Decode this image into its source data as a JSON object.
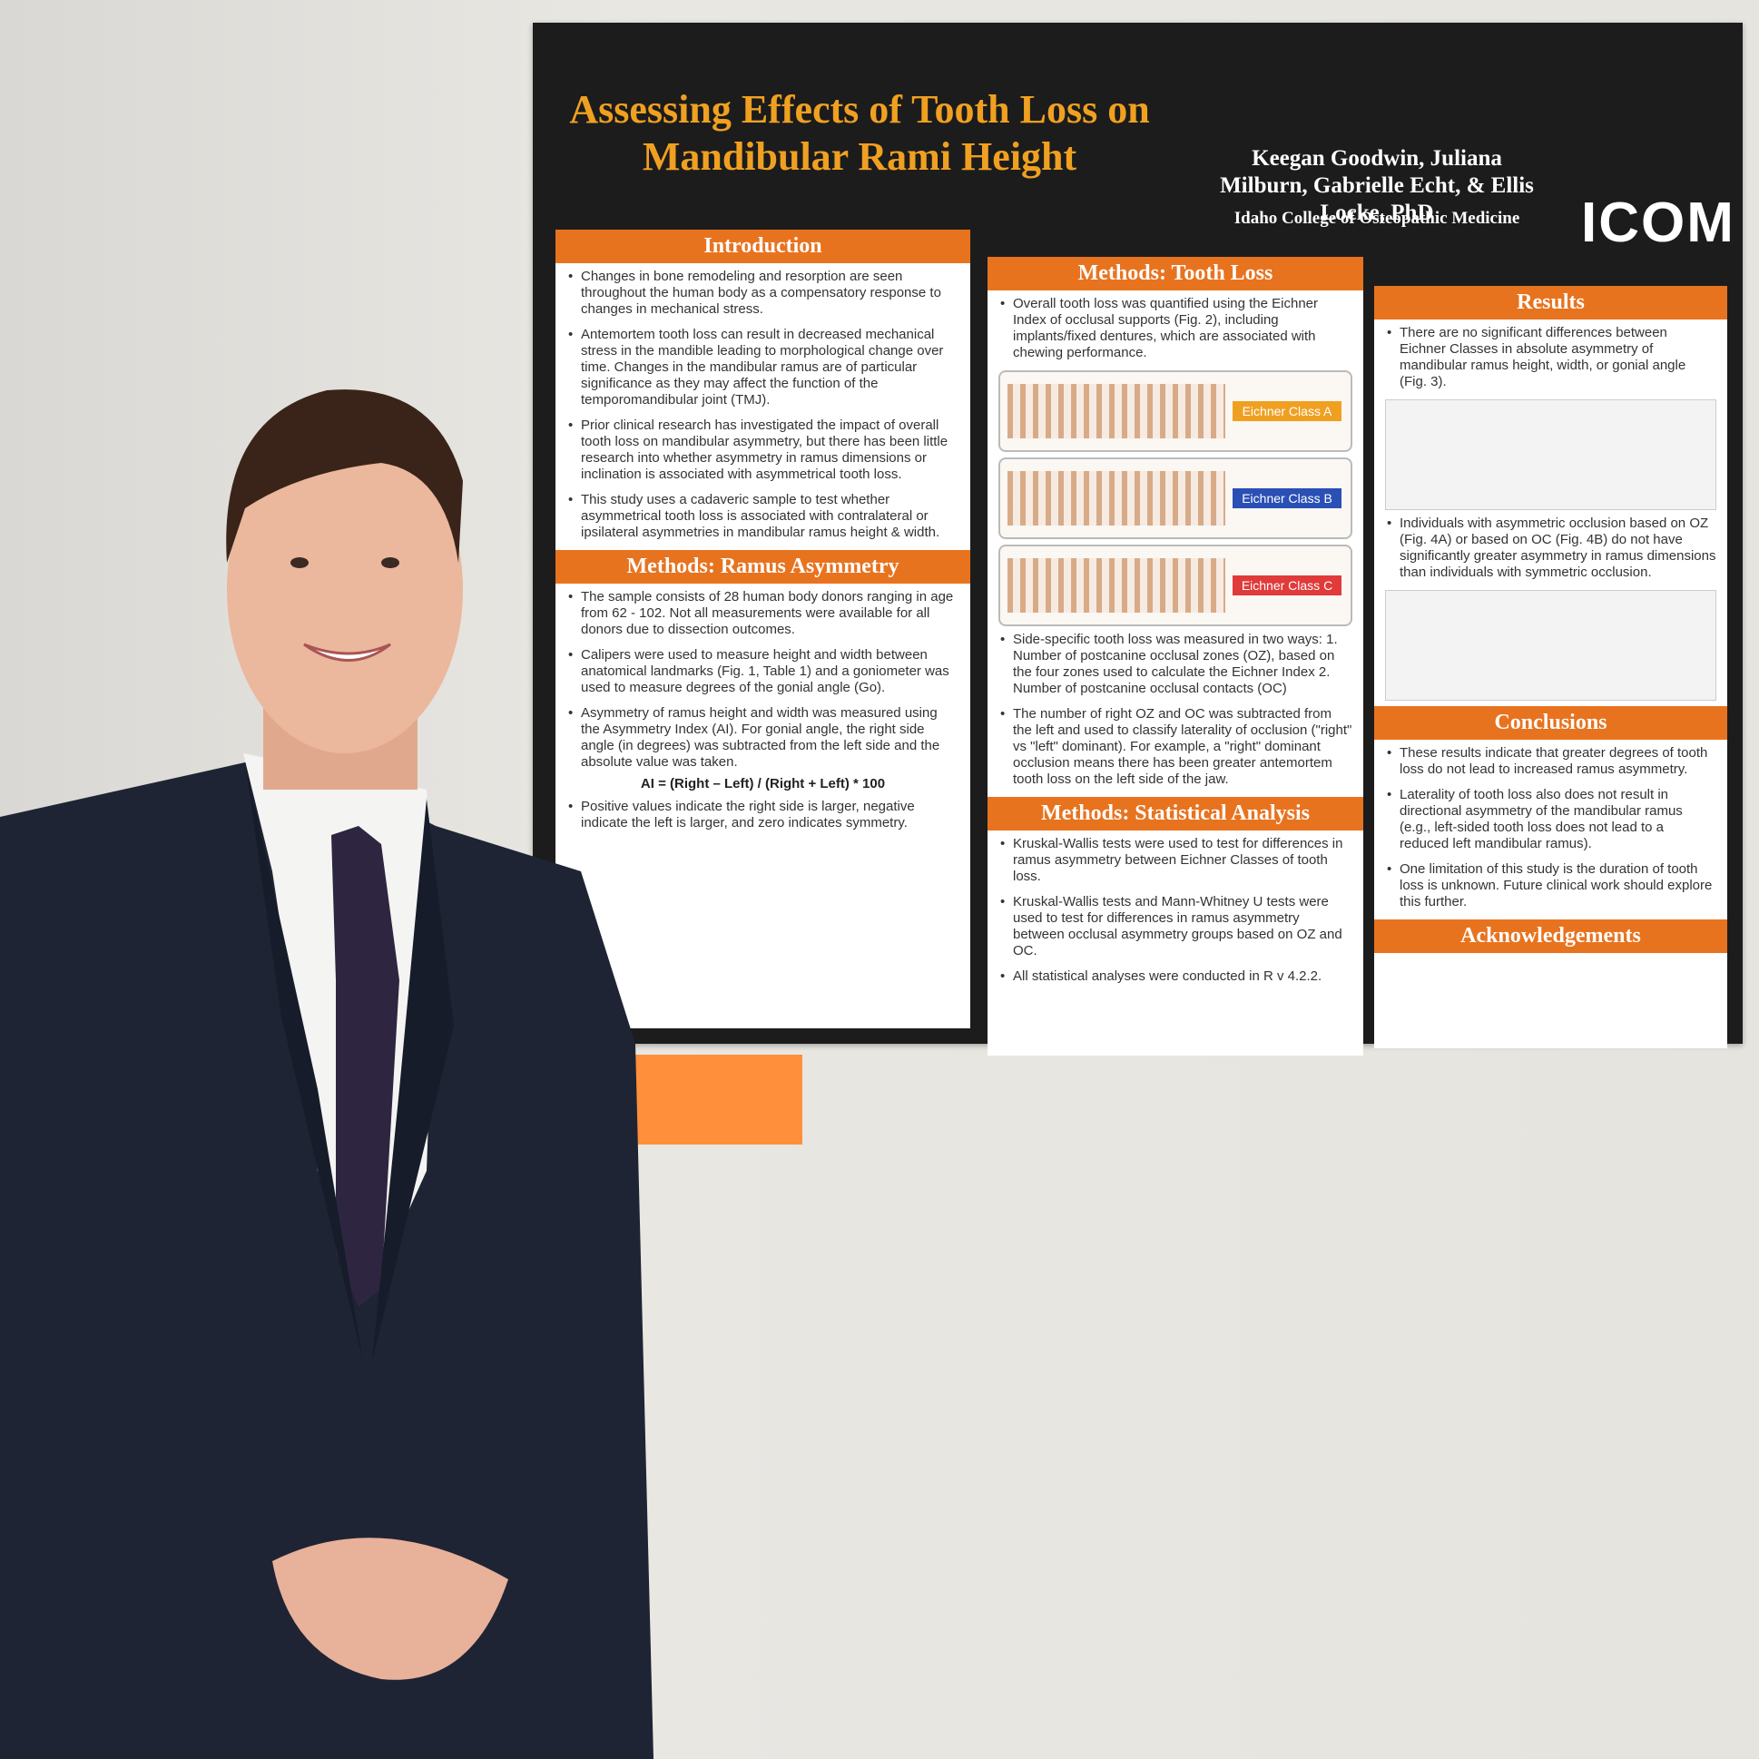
{
  "poster": {
    "title": "Assessing Effects of Tooth Loss on Mandibular Rami Height",
    "authors": "Keegan Goodwin, Juliana Milburn, Gabrielle Echt, & Ellis Locke, PhD",
    "institution": "Idaho College of Osteopathic Medicine",
    "logo": "ICOM",
    "sections": [
      {
        "heading": "Introduction",
        "bullets": [
          "Changes in bone remodeling and resorption are seen throughout the human body as a compensatory response to changes in mechanical stress.",
          "Antemortem tooth loss can result in decreased mechanical stress in the mandible leading to morphological change over time. Changes in the mandibular ramus are of particular significance as they may affect the function of the temporomandibular joint (TMJ).",
          "Prior clinical research has investigated the impact of overall tooth loss on mandibular asymmetry, but there has been little research into whether asymmetry in ramus dimensions or inclination is associated with asymmetrical tooth loss.",
          "This study uses a cadaveric sample to test whether asymmetrical tooth loss is associated with contralateral or ipsilateral asymmetries in mandibular ramus height & width."
        ]
      },
      {
        "heading": "Methods: Ramus Asymmetry",
        "bullets": [
          "The sample consists of 28 human body donors ranging in age from 62 - 102. Not all measurements were available for all donors due to dissection outcomes.",
          "Calipers were used to measure height and width between anatomical landmarks (Fig. 1, Table 1) and a goniometer was used to measure degrees of the gonial angle (Go).",
          "Asymmetry of ramus height and width was measured using the Asymmetry Index (AI). For gonial angle, the right side angle (in degrees) was subtracted from the left side and the absolute value was taken.",
          "Positive values indicate the right side is larger, negative indicate the left is larger, and zero indicates symmetry."
        ],
        "formula": "AI = (Right – Left) / (Right + Left) * 100"
      },
      {
        "heading": "Methods: Tooth Loss",
        "bullets": [
          "Overall tooth loss was quantified using the Eichner Index of occlusal supports (Fig. 2), including implants/fixed dentures, which are associated with chewing performance.",
          "Side-specific tooth loss was measured in two ways: 1. Number of postcanine occlusal zones (OZ), based on the four zones used to calculate the Eichner Index 2. Number of postcanine occlusal contacts (OC)",
          "The number of right OZ and OC was subtracted from the left and used to classify laterality of occlusion (\"right\" vs \"left\" dominant). For example, a \"right\" dominant occlusion means there has been greater antemortem tooth loss on the left side of the jaw."
        ],
        "classes": [
          "Eichner Class A",
          "Eichner Class B",
          "Eichner Class C"
        ]
      },
      {
        "heading": "Methods: Statistical Analysis",
        "bullets": [
          "Kruskal-Wallis tests were used to test for differences in ramus asymmetry between Eichner Classes of tooth loss.",
          "Kruskal-Wallis tests and Mann-Whitney U tests were used to test for differences in ramus asymmetry between occlusal asymmetry groups based on OZ and OC.",
          "All statistical analyses were conducted in R v 4.2.2."
        ]
      },
      {
        "heading": "Results",
        "bullets": [
          "There are no significant differences between Eichner Classes in absolute asymmetry of mandibular ramus height, width, or gonial angle (Fig. 3).",
          "Individuals with asymmetric occlusion based on OZ (Fig. 4A) or based on OC (Fig. 4B) do not have significantly greater asymmetry in ramus dimensions than individuals with symmetric occlusion."
        ]
      },
      {
        "heading": "Conclusions",
        "bullets": [
          "These results indicate that greater degrees of tooth loss do not lead to increased ramus asymmetry.",
          "Laterality of tooth loss also does not result in directional asymmetry of the mandibular ramus (e.g., left-sided tooth loss does not lead to a reduced left mandibular ramus).",
          "One limitation of this study is the duration of tooth loss is unknown. Future clinical work should explore this further."
        ]
      },
      {
        "heading": "Acknowledgements",
        "bullets": []
      }
    ]
  }
}
